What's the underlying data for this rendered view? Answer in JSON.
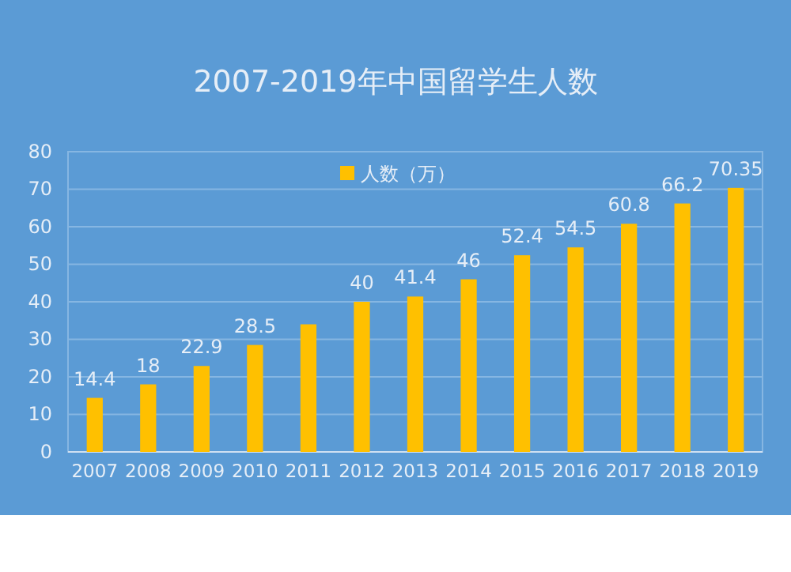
{
  "chart_data": {
    "type": "bar",
    "title": "2007-2019年中国留学生人数",
    "categories": [
      "2007",
      "2008",
      "2009",
      "2010",
      "2011",
      "2012",
      "2013",
      "2014",
      "2015",
      "2016",
      "2017",
      "2018",
      "2019"
    ],
    "series": [
      {
        "name": "人数（万）",
        "color": "#ffc000",
        "values": [
          14.4,
          18,
          22.9,
          28.5,
          34,
          40,
          41.4,
          46,
          52.4,
          54.5,
          60.8,
          66.2,
          70.35
        ],
        "value_labels": [
          "14.4",
          "18",
          "22.9",
          "28.5",
          null,
          "40",
          "41.4",
          "46",
          "52.4",
          "54.5",
          "60.8",
          "66.2",
          "70.35"
        ]
      }
    ],
    "ylim": [
      0,
      80
    ],
    "yticks": [
      0,
      10,
      20,
      30,
      40,
      50,
      60,
      70,
      80
    ],
    "grid": "y",
    "legend": "top"
  }
}
